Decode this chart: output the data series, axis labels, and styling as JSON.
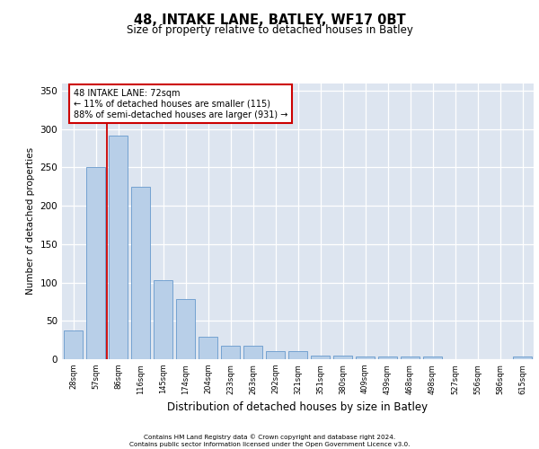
{
  "title": "48, INTAKE LANE, BATLEY, WF17 0BT",
  "subtitle": "Size of property relative to detached houses in Batley",
  "xlabel": "Distribution of detached houses by size in Batley",
  "ylabel": "Number of detached properties",
  "categories": [
    "28sqm",
    "57sqm",
    "86sqm",
    "116sqm",
    "145sqm",
    "174sqm",
    "204sqm",
    "233sqm",
    "263sqm",
    "292sqm",
    "321sqm",
    "351sqm",
    "380sqm",
    "409sqm",
    "439sqm",
    "468sqm",
    "498sqm",
    "527sqm",
    "556sqm",
    "586sqm",
    "615sqm"
  ],
  "values": [
    38,
    250,
    291,
    225,
    103,
    79,
    29,
    18,
    18,
    10,
    10,
    5,
    5,
    4,
    4,
    3,
    3,
    0,
    0,
    0,
    3
  ],
  "bar_color": "#b8cfe8",
  "bar_edgecolor": "#6699cc",
  "vline_x": 1.5,
  "vline_color": "#cc0000",
  "annotation_text": "48 INTAKE LANE: 72sqm\n← 11% of detached houses are smaller (115)\n88% of semi-detached houses are larger (931) →",
  "annotation_box_color": "#ffffff",
  "annotation_box_edgecolor": "#cc0000",
  "ylim": [
    0,
    360
  ],
  "yticks": [
    0,
    50,
    100,
    150,
    200,
    250,
    300,
    350
  ],
  "background_color": "#dde5f0",
  "footer_line1": "Contains HM Land Registry data © Crown copyright and database right 2024.",
  "footer_line2": "Contains public sector information licensed under the Open Government Licence v3.0."
}
